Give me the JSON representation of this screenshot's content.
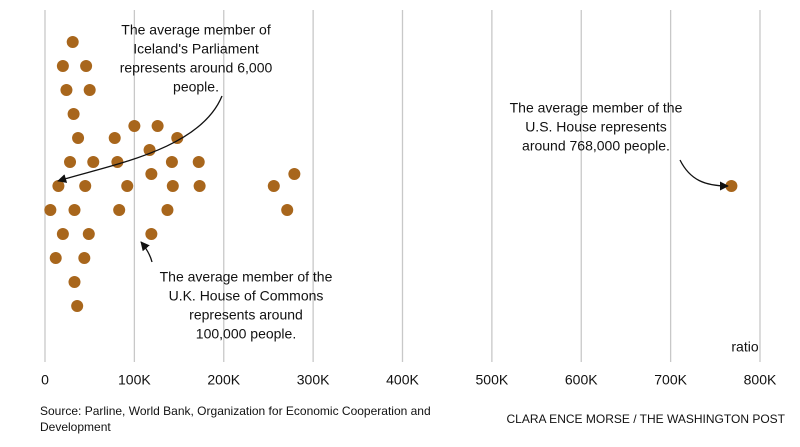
{
  "chart_data": {
    "type": "scatter",
    "x_label": "ratio",
    "x": [
      45000,
      28000,
      33000,
      15000,
      37000,
      54000,
      143000,
      92000,
      119000,
      20000,
      137000,
      32000,
      81000,
      117000,
      6000,
      49000,
      173000,
      142000,
      256000,
      279000,
      44000,
      83000,
      172000,
      271000,
      119000,
      24000,
      126000,
      78000,
      12000,
      33000,
      50000,
      100000,
      148000,
      20000,
      36000,
      46000,
      31000,
      768000
    ],
    "color": "#a8661c",
    "xlim": [
      0,
      800000
    ],
    "xticks": [
      0,
      {
        "value": 100000,
        "label": "100K"
      },
      {
        "value": 200000,
        "label": "200K"
      },
      {
        "value": 300000,
        "label": "300K"
      },
      {
        "value": 400000,
        "label": "400K"
      },
      {
        "value": 500000,
        "label": "500K"
      },
      {
        "value": 600000,
        "label": "600K"
      },
      {
        "value": 700000,
        "label": "700K"
      },
      {
        "value": 800000,
        "label": "800K"
      }
    ],
    "grid": true,
    "annotations": [
      {
        "lines": [
          "The average member of",
          "Iceland's Parliament",
          "represents around 6,000",
          "people."
        ]
      },
      {
        "lines": [
          "The average member of the",
          "U.S. House represents",
          "around 768,000 people."
        ]
      },
      {
        "lines": [
          "The average member of the",
          "U.K. House of Commons",
          "represents around",
          "100,000 people."
        ]
      }
    ],
    "source": [
      "Source: Parline, World Bank, Organization for Economic Cooperation and",
      "Development"
    ],
    "credit": "CLARA ENCE MORSE / THE WASHINGTON POST"
  }
}
